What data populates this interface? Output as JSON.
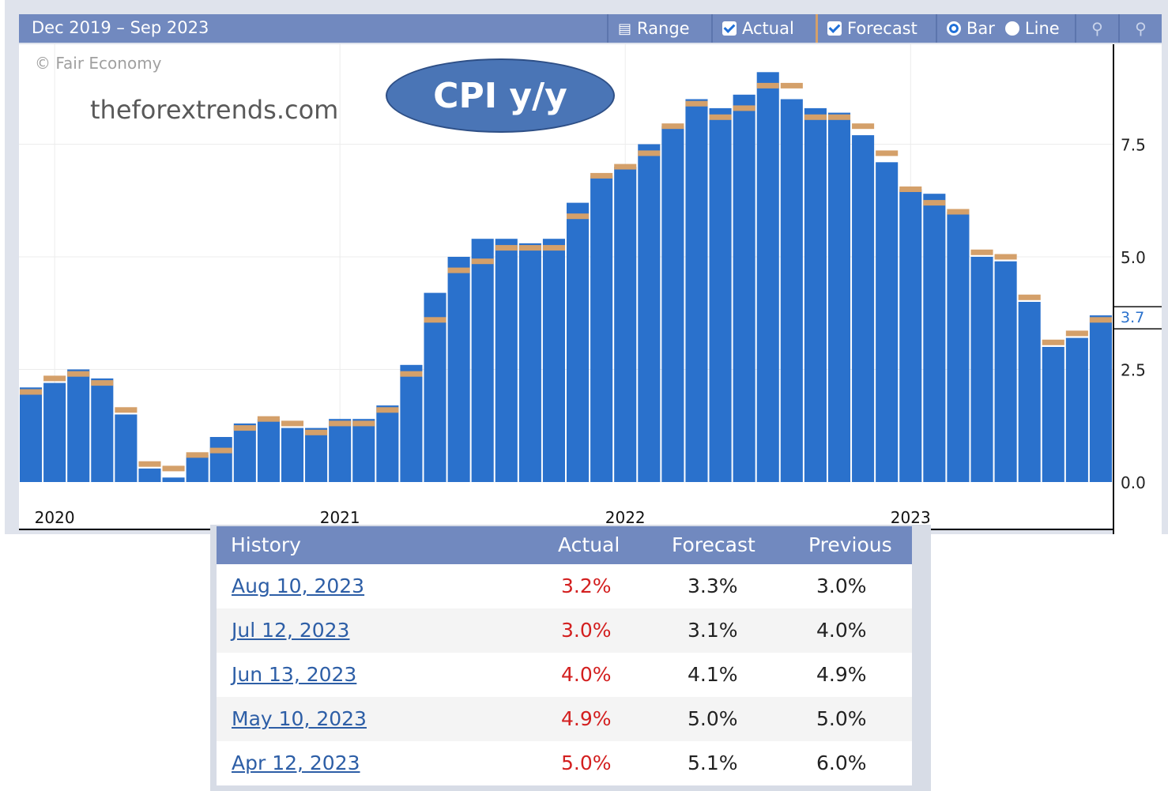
{
  "toolbar": {
    "range_text": "Dec 2019 – Sep 2023",
    "range_button": "Range",
    "actual_label": "Actual",
    "forecast_label": "Forecast",
    "bar_label": "Bar",
    "line_label": "Line"
  },
  "credit": "© Fair Economy",
  "watermark": "theforextrends.com",
  "badge": "CPI y/y",
  "colors": {
    "actual": "#2a71cc",
    "forecast": "#d4a06a",
    "header": "#7189bf",
    "actual_text": "#d31f1f",
    "link": "#2d5ea6"
  },
  "chart_data": {
    "type": "bar",
    "x_tick_labels": [
      "2020",
      "2021",
      "2022",
      "2023"
    ],
    "y_ticks": [
      "7.5",
      "5.0",
      "2.5",
      "0.0"
    ],
    "last_value_label": "3.7",
    "ylim": [
      0,
      9.7
    ],
    "grid": true,
    "series": [
      {
        "name": "Actual",
        "values": [
          2.1,
          2.2,
          2.5,
          2.3,
          1.5,
          0.3,
          0.1,
          0.6,
          1.0,
          1.3,
          1.4,
          1.2,
          1.2,
          1.4,
          1.4,
          1.7,
          2.6,
          4.2,
          5.0,
          5.4,
          5.4,
          5.3,
          5.4,
          6.2,
          6.8,
          7.0,
          7.5,
          7.9,
          8.5,
          8.3,
          8.6,
          9.1,
          8.5,
          8.3,
          8.2,
          7.7,
          7.1,
          6.5,
          6.4,
          6.0,
          5.0,
          4.9,
          4.0,
          3.0,
          3.2,
          3.7
        ]
      },
      {
        "name": "Forecast",
        "values": [
          2.0,
          2.3,
          2.4,
          2.2,
          1.6,
          0.4,
          0.3,
          0.6,
          0.7,
          1.2,
          1.4,
          1.3,
          1.1,
          1.3,
          1.3,
          1.6,
          2.4,
          3.6,
          4.7,
          4.9,
          5.2,
          5.2,
          5.2,
          5.9,
          6.8,
          7.0,
          7.3,
          7.9,
          8.4,
          8.1,
          8.3,
          8.8,
          8.8,
          8.1,
          8.1,
          7.9,
          7.3,
          6.5,
          6.2,
          6.0,
          5.1,
          5.0,
          4.1,
          3.1,
          3.3,
          3.6
        ]
      }
    ]
  },
  "table": {
    "headers": {
      "history": "History",
      "actual": "Actual",
      "forecast": "Forecast",
      "previous": "Previous"
    },
    "rows": [
      {
        "date": "Aug 10, 2023",
        "actual": "3.2%",
        "forecast": "3.3%",
        "previous": "3.0%"
      },
      {
        "date": "Jul 12, 2023",
        "actual": "3.0%",
        "forecast": "3.1%",
        "previous": "4.0%"
      },
      {
        "date": "Jun 13, 2023",
        "actual": "4.0%",
        "forecast": "4.1%",
        "previous": "4.9%"
      },
      {
        "date": "May 10, 2023",
        "actual": "4.9%",
        "forecast": "5.0%",
        "previous": "5.0%"
      },
      {
        "date": "Apr 12, 2023",
        "actual": "5.0%",
        "forecast": "5.1%",
        "previous": "6.0%"
      }
    ]
  }
}
